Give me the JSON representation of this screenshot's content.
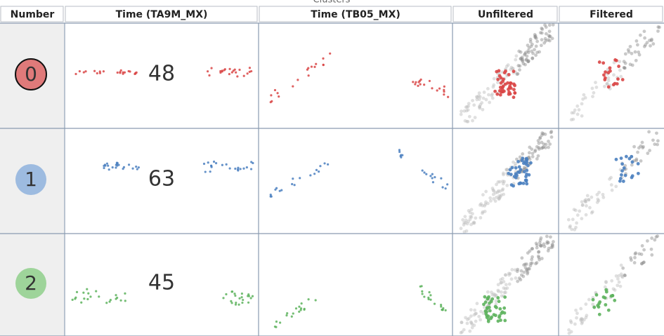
{
  "title": "Clusters",
  "columns": [
    "Number",
    "Time (TA9M_MX)",
    "Time (TB05_MX)",
    "Unfiltered",
    "Filtered"
  ],
  "rows": [
    {
      "number": 0,
      "count": 48,
      "color": "#d94545",
      "badge_color": "#e07a7a",
      "selected": true
    },
    {
      "number": 1,
      "count": 63,
      "color": "#4a7fbf",
      "badge_color": "#9dbbe0",
      "selected": false
    },
    {
      "number": 2,
      "count": 45,
      "color": "#5db35d",
      "badge_color": "#9ed49a",
      "selected": false
    }
  ]
}
